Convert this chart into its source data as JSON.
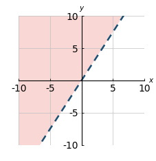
{
  "xlim": [
    -10,
    10
  ],
  "ylim": [
    -10,
    10
  ],
  "xticks": [
    -10,
    -5,
    0,
    5,
    10
  ],
  "yticks": [
    -10,
    -5,
    0,
    5,
    10
  ],
  "slope": 1.5,
  "intercept": 0,
  "line_color": "#1b4f72",
  "line_style": "--",
  "line_width": 1.8,
  "shade_color": "#f5b7b1",
  "shade_alpha": 0.55,
  "xlabel": "x",
  "ylabel": "y",
  "tick_fontsize": 5.5,
  "label_fontsize": 7.5,
  "figsize": [
    2.28,
    2.34
  ],
  "dpi": 100,
  "grid_color": "#c0c0c0",
  "background_color": "#ffffff"
}
